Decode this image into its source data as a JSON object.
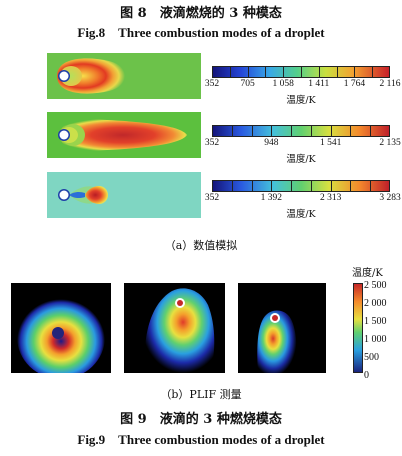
{
  "figure8": {
    "title_cn": "图 8　液滴燃烧的 3 种模态",
    "title_en": "Fig.8　Three combustion modes of a droplet",
    "panels": [
      {
        "background": "#6cc24a",
        "scale": {
          "min": 352,
          "max": 2116,
          "labels": [
            "352",
            "705",
            "1 058",
            "1 411",
            "1 764",
            "2 116"
          ],
          "unit": "温度/K"
        }
      },
      {
        "background": "#5cc03e",
        "scale": {
          "min": 352,
          "max": 2135,
          "labels": [
            "352",
            "948",
            "1 541",
            "2 135"
          ],
          "unit": "温度/K"
        }
      },
      {
        "background": "#7fd6c2",
        "scale": {
          "min": 352,
          "max": 3283,
          "labels": [
            "352",
            "1 392",
            "2 313",
            "3 283"
          ],
          "unit": "温度/K"
        }
      }
    ],
    "caption_a": "（a）数值模拟"
  },
  "figure9": {
    "title_cn": "图 9　液滴的 3 种燃烧模态",
    "title_en": "Fig.9　Three combustion modes of a droplet",
    "caption_b": "（b）PLIF 测量",
    "colorbar": {
      "label": "温度/K",
      "ticks": [
        "2 500",
        "2 000",
        "1 500",
        "1 000",
        "500",
        "0"
      ],
      "min": 0,
      "max": 2500
    }
  },
  "colors": {
    "jet_low": "#1a237e",
    "jet_mid": "#4caf50",
    "jet_high": "#c62828"
  }
}
